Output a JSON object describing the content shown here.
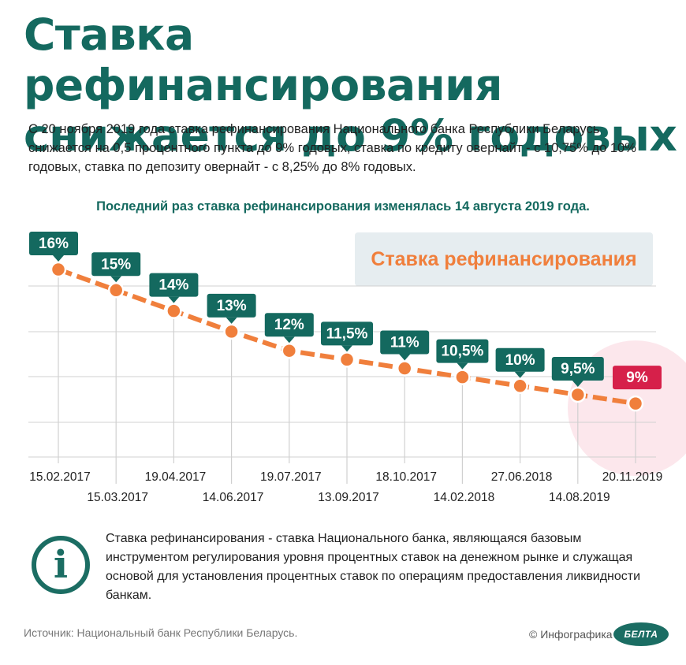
{
  "title": "Ставка рефинансирования снижается до 9% годовых",
  "intro": "С 20 ноября 2019 года ставка рефинансирования Национального банка Республики Беларусь снижается на 0,5 процентного пункта до 9% годовых, ставка по кредиту овернайт - с 10,75% до 10% годовых, ставка по депозиту овернайт - с 8,25% до 8% годовых.",
  "last_change": "Последний раз ставка рефинансирования изменялась 14 августа 2019 года.",
  "info_text": "Ставка рефинансирования - ставка Национального банка, являющаяся базовым инструментом регулирования уровня процентных ставок на денежном рынке и служащая основой для установления процентных ставок по операциям предоставления ликвидности банкам.",
  "info_icon": "i",
  "source": "Источник: Национальный банк Республики Беларусь.",
  "credit": "© Инфографика",
  "logo": "БЕЛТА",
  "colors": {
    "title": "#14695f",
    "label_box": "#14695f",
    "highlight_box": "#d6204a",
    "line": "#f07f3c",
    "point_stroke": "#ffffff",
    "grid": "#d0d0d0",
    "legend_bg": "#e6edf0",
    "glow": "#f8c9d4"
  },
  "chart_data": {
    "type": "line",
    "title": "",
    "xlabel": "",
    "ylabel": "",
    "legend": "Ставка рефинансирования",
    "legend_position": "top-right",
    "grid": true,
    "x": [
      "15.02.2017",
      "15.03.2017",
      "19.04.2017",
      "14.06.2017",
      "19.07.2017",
      "13.09.2017",
      "18.10.2017",
      "14.02.2018",
      "27.06.2018",
      "14.08.2019",
      "20.11.2019"
    ],
    "series": [
      {
        "name": "Ставка рефинансирования",
        "values": [
          16,
          15,
          14,
          13,
          12,
          11.5,
          11,
          10.5,
          10,
          9.5,
          9
        ],
        "labels": [
          "16%",
          "15%",
          "14%",
          "13%",
          "12%",
          "11,5%",
          "11%",
          "10,5%",
          "10%",
          "9,5%",
          "9%"
        ]
      }
    ],
    "highlight": "20.11.2019"
  }
}
